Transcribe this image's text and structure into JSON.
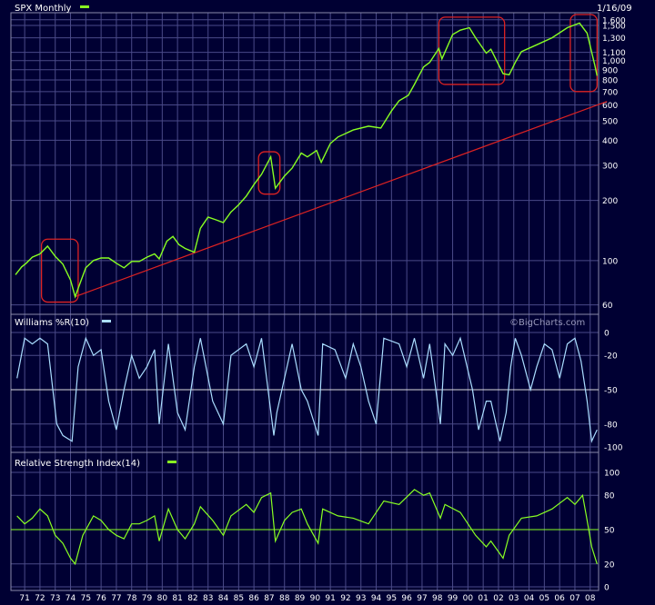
{
  "colors": {
    "background": "#000033",
    "grid": "#4a4a88",
    "frame": "#8a8aaa",
    "text": "#ffffff",
    "price": "#88ff22",
    "williams": "#aaddff",
    "rsi": "#88ff22",
    "trendline": "#dd2222",
    "highlight_box": "#dd2222"
  },
  "chart_data": [
    {
      "type": "line",
      "panel": "price",
      "title": "SPX Monthly",
      "date": "1/16/09",
      "scale": "log",
      "ylim": [
        55,
        1700
      ],
      "y_ticks": [
        60,
        100,
        200,
        300,
        400,
        500,
        600,
        700,
        800,
        900,
        "1,000",
        "1,100",
        "1,300",
        "1,500",
        "1,600"
      ],
      "series": [
        {
          "name": "SPX Monthly",
          "x": [
            1970.9,
            1971.3,
            1971.6,
            1972.0,
            1972.5,
            1973.0,
            1973.5,
            1974.0,
            1974.5,
            1974.8,
            1975.2,
            1975.5,
            1976.0,
            1976.5,
            1977.0,
            1977.5,
            1978.0,
            1978.5,
            1979.0,
            1979.5,
            1980.0,
            1980.3,
            1980.8,
            1981.2,
            1981.6,
            1982.0,
            1982.6,
            1983.0,
            1983.5,
            1984.0,
            1984.5,
            1985.0,
            1985.5,
            1986.0,
            1986.5,
            1987.0,
            1987.6,
            1987.9,
            1988.5,
            1989.0,
            1989.6,
            1990.0,
            1990.6,
            1990.9,
            1991.5,
            1992.0,
            1993.0,
            1994.0,
            1994.8,
            1995.5,
            1996.0,
            1996.6,
            1997.0,
            1997.6,
            1998.0,
            1998.6,
            1998.8,
            1999.5,
            2000.0,
            2000.6,
            2001.0,
            2001.7,
            2002.0,
            2002.8,
            2003.2,
            2003.6,
            2004.0,
            2005.0,
            2006.0,
            2007.0,
            2007.8,
            2008.3,
            2008.8,
            2008.95
          ],
          "y": [
            85,
            93,
            97,
            104,
            108,
            118,
            105,
            96,
            80,
            66,
            80,
            92,
            100,
            103,
            103,
            97,
            92,
            99,
            99,
            104,
            108,
            102,
            125,
            132,
            120,
            115,
            110,
            145,
            165,
            160,
            155,
            175,
            190,
            210,
            240,
            270,
            330,
            230,
            265,
            290,
            345,
            330,
            355,
            310,
            385,
            415,
            450,
            470,
            460,
            560,
            630,
            670,
            760,
            930,
            980,
            1150,
            1020,
            1350,
            1420,
            1460,
            1300,
            1090,
            1140,
            860,
            850,
            980,
            1110,
            1200,
            1300,
            1460,
            1540,
            1370,
            950,
            840
          ]
        }
      ],
      "annotations": [
        {
          "type": "trendline",
          "from": [
            1974.8,
            66
          ],
          "to": [
            2009.6,
            625
          ]
        },
        {
          "type": "highlight",
          "range": [
            1972.6,
            1975.0
          ],
          "y": [
            62,
            128
          ]
        },
        {
          "type": "highlight",
          "range": [
            1986.8,
            1988.2
          ],
          "y": [
            215,
            350
          ]
        },
        {
          "type": "highlight",
          "range": [
            1998.6,
            2002.9
          ],
          "y": [
            760,
            1650
          ]
        },
        {
          "type": "highlight",
          "range": [
            2007.2,
            2008.95
          ],
          "y": [
            700,
            1700
          ]
        }
      ]
    },
    {
      "type": "line",
      "panel": "williams",
      "title": "Williams %R(10)",
      "watermark": "©BigCharts.com",
      "ylim": [
        -100,
        0
      ],
      "y_ticks": [
        "0",
        "-20",
        "-50",
        "-80",
        "-100"
      ],
      "reference_line": -50,
      "series": [
        {
          "name": "Williams %R(10)",
          "x": [
            1971.0,
            1971.5,
            1972.0,
            1972.5,
            1973.0,
            1973.6,
            1974.0,
            1974.6,
            1975.0,
            1975.5,
            1976.0,
            1976.5,
            1977.0,
            1977.5,
            1978.0,
            1978.5,
            1979.0,
            1979.5,
            1980.0,
            1980.3,
            1980.9,
            1981.5,
            1982.0,
            1982.6,
            1983.0,
            1983.8,
            1984.5,
            1985.0,
            1986.0,
            1986.5,
            1987.0,
            1987.8,
            1988.0,
            1988.5,
            1989.0,
            1989.6,
            1990.0,
            1990.7,
            1991.0,
            1991.8,
            1992.5,
            1993.0,
            1993.5,
            1994.0,
            1994.5,
            1995.0,
            1996.0,
            1996.5,
            1997.0,
            1997.6,
            1998.0,
            1998.7,
            1999.0,
            1999.5,
            2000.0,
            2000.8,
            2001.2,
            2001.7,
            2002.0,
            2002.6,
            2003.0,
            2003.3,
            2003.6,
            2004.0,
            2004.6,
            2005.0,
            2005.5,
            2006.0,
            2006.5,
            2007.0,
            2007.5,
            2007.9,
            2008.3,
            2008.6,
            2008.95
          ],
          "y": [
            -40,
            -5,
            -10,
            -5,
            -10,
            -80,
            -90,
            -95,
            -30,
            -5,
            -20,
            -15,
            -60,
            -85,
            -50,
            -20,
            -40,
            -30,
            -15,
            -80,
            -10,
            -70,
            -85,
            -30,
            -5,
            -60,
            -80,
            -20,
            -10,
            -30,
            -5,
            -90,
            -70,
            -40,
            -10,
            -50,
            -60,
            -90,
            -10,
            -15,
            -40,
            -10,
            -30,
            -60,
            -80,
            -5,
            -10,
            -30,
            -5,
            -40,
            -10,
            -80,
            -10,
            -20,
            -5,
            -50,
            -85,
            -60,
            -60,
            -95,
            -70,
            -30,
            -5,
            -20,
            -50,
            -30,
            -10,
            -15,
            -40,
            -10,
            -5,
            -25,
            -60,
            -95,
            -85
          ]
        }
      ]
    },
    {
      "type": "line",
      "panel": "rsi",
      "title": "Relative Strength Index(14)",
      "ylim": [
        0,
        100
      ],
      "y_ticks": [
        "100",
        "80",
        "50",
        "20",
        "0"
      ],
      "reference_line": 50,
      "categories": [
        "71",
        "72",
        "73",
        "74",
        "75",
        "76",
        "77",
        "78",
        "79",
        "80",
        "81",
        "82",
        "83",
        "84",
        "85",
        "86",
        "87",
        "88",
        "89",
        "90",
        "91",
        "92",
        "93",
        "94",
        "95",
        "96",
        "97",
        "98",
        "99",
        "00",
        "01",
        "02",
        "03",
        "04",
        "05",
        "06",
        "07",
        "08"
      ],
      "series": [
        {
          "name": "Relative Strength Index(14)",
          "x": [
            1971.0,
            1971.5,
            1972.0,
            1972.5,
            1973.0,
            1973.5,
            1974.0,
            1974.5,
            1974.8,
            1975.3,
            1976.0,
            1976.5,
            1977.0,
            1977.5,
            1978.0,
            1978.5,
            1979.0,
            1979.5,
            1980.0,
            1980.3,
            1980.9,
            1981.5,
            1982.0,
            1982.6,
            1983.0,
            1983.8,
            1984.5,
            1985.0,
            1986.0,
            1986.5,
            1987.0,
            1987.6,
            1987.9,
            1988.5,
            1989.0,
            1989.6,
            1990.0,
            1990.7,
            1991.0,
            1992.0,
            1993.0,
            1994.0,
            1995.0,
            1996.0,
            1997.0,
            1997.6,
            1998.0,
            1998.7,
            1999.0,
            2000.0,
            2000.5,
            2001.0,
            2001.7,
            2002.0,
            2002.8,
            2003.2,
            2004.0,
            2005.0,
            2006.0,
            2007.0,
            2007.5,
            2008.0,
            2008.3,
            2008.6,
            2008.95
          ],
          "y": [
            62,
            55,
            60,
            68,
            62,
            45,
            38,
            25,
            20,
            45,
            62,
            58,
            50,
            45,
            42,
            55,
            55,
            58,
            62,
            40,
            68,
            50,
            42,
            55,
            70,
            58,
            45,
            62,
            72,
            65,
            78,
            82,
            40,
            58,
            65,
            68,
            55,
            38,
            68,
            62,
            60,
            55,
            75,
            72,
            85,
            80,
            82,
            60,
            72,
            65,
            55,
            45,
            35,
            40,
            25,
            45,
            60,
            62,
            68,
            78,
            72,
            80,
            58,
            35,
            20
          ]
        }
      ]
    }
  ]
}
